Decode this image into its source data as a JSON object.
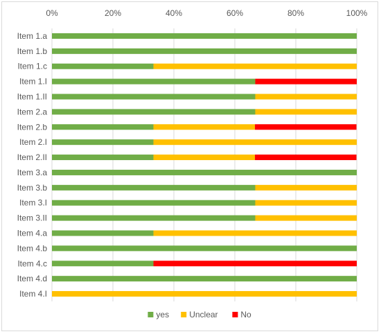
{
  "chart_data": {
    "type": "bar",
    "orientation": "horizontal",
    "stacked": "percent",
    "title": "",
    "xlabel": "",
    "ylabel": "",
    "xlim": [
      0,
      100
    ],
    "x_tick_labels": [
      "0%",
      "20%",
      "40%",
      "60%",
      "80%",
      "100%"
    ],
    "x_axis_position": "top",
    "grid": true,
    "legend_position": "bottom",
    "categories": [
      "Item 1.a",
      "Item 1.b",
      "Item 1.c",
      "Item 1.I",
      "Item 1.II",
      "Item 2.a",
      "Item 2.b",
      "Item 2.I",
      "Item 2.II",
      "Item 3.a",
      "Item 3.b",
      "Item 3.I",
      "Item 3.II",
      "Item 4.a",
      "Item 4.b",
      "Item 4.c",
      "Item 4.d",
      "Item 4.I"
    ],
    "series": [
      {
        "name": "yes",
        "color": "#70ad47",
        "values": [
          100,
          100,
          33.3,
          66.7,
          66.7,
          66.7,
          33.3,
          33.3,
          33.3,
          100,
          66.7,
          66.7,
          66.7,
          33.3,
          100,
          33.3,
          100,
          0
        ]
      },
      {
        "name": "Unclear",
        "color": "#ffc000",
        "values": [
          0,
          0,
          66.7,
          0,
          33.3,
          33.3,
          33.3,
          66.7,
          33.3,
          0,
          33.3,
          33.3,
          33.3,
          66.7,
          0,
          0,
          0,
          100
        ]
      },
      {
        "name": "No",
        "color": "#ff0000",
        "values": [
          0,
          0,
          0,
          33.3,
          0,
          0,
          33.3,
          0,
          33.3,
          0,
          0,
          0,
          0,
          0,
          0,
          66.7,
          0,
          0
        ]
      }
    ]
  }
}
